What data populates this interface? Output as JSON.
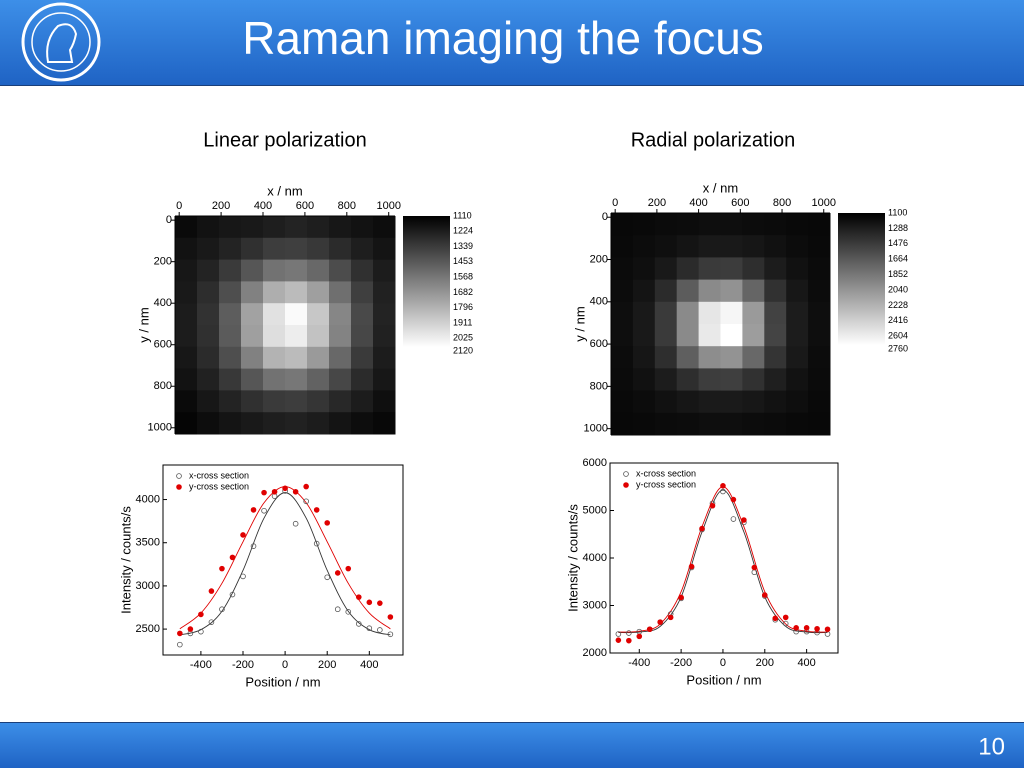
{
  "header": {
    "title": "Raman imaging the focus"
  },
  "slide_number": 10,
  "panels": [
    {
      "label": "Linear polarization",
      "heatmap": {
        "type": "heatmap",
        "xlabel": "x / nm",
        "ylabel": "y / nm",
        "xlim": [
          -20,
          1030
        ],
        "ylim": [
          -20,
          1030
        ],
        "xticks": [
          0,
          200,
          400,
          600,
          800,
          1000
        ],
        "yticks": [
          0,
          200,
          400,
          600,
          800,
          1000
        ],
        "values": [
          [
            1150,
            1180,
            1200,
            1210,
            1230,
            1250,
            1230,
            1200,
            1180,
            1160
          ],
          [
            1180,
            1210,
            1250,
            1300,
            1350,
            1360,
            1330,
            1280,
            1230,
            1190
          ],
          [
            1200,
            1250,
            1340,
            1450,
            1560,
            1580,
            1520,
            1410,
            1300,
            1220
          ],
          [
            1210,
            1290,
            1420,
            1620,
            1800,
            1850,
            1740,
            1550,
            1360,
            1240
          ],
          [
            1220,
            1310,
            1480,
            1750,
            2000,
            2100,
            1900,
            1640,
            1400,
            1250
          ],
          [
            1220,
            1300,
            1470,
            1740,
            1990,
            2050,
            1880,
            1630,
            1390,
            1240
          ],
          [
            1200,
            1280,
            1420,
            1620,
            1820,
            1850,
            1720,
            1520,
            1340,
            1220
          ],
          [
            1180,
            1240,
            1330,
            1450,
            1560,
            1580,
            1500,
            1390,
            1280,
            1200
          ],
          [
            1150,
            1200,
            1250,
            1300,
            1340,
            1350,
            1320,
            1270,
            1220,
            1170
          ],
          [
            1130,
            1160,
            1190,
            1210,
            1230,
            1240,
            1220,
            1190,
            1160,
            1140
          ]
        ],
        "colorbar_ticks": [
          1110,
          1224,
          1339,
          1453,
          1568,
          1682,
          1796,
          1911,
          2025,
          2120
        ]
      },
      "profile": {
        "type": "scatter",
        "xlabel": "Position / nm",
        "ylabel": "Intensity / counts/s",
        "xlim": [
          -580,
          560
        ],
        "ylim": [
          2200,
          4400
        ],
        "xticks": [
          -400,
          -200,
          0,
          200,
          400
        ],
        "yticks": [
          2500,
          3000,
          3500,
          4000
        ],
        "x": [
          -500,
          -450,
          -400,
          -350,
          -300,
          -250,
          -200,
          -150,
          -100,
          -50,
          0,
          50,
          100,
          150,
          200,
          250,
          300,
          350,
          400,
          450,
          500
        ],
        "series": [
          {
            "name": "x-cross section",
            "color": "#555555",
            "marker": "open",
            "values": [
              2320,
              2450,
              2470,
              2580,
              2730,
              2900,
              3110,
              3460,
              3870,
              4040,
              4100,
              3720,
              3980,
              3490,
              3100,
              2730,
              2700,
              2560,
              2510,
              2490,
              2440
            ]
          },
          {
            "name": "y-cross section",
            "color": "#e00000",
            "marker": "filled",
            "values": [
              2450,
              2500,
              2670,
              2940,
              3200,
              3330,
              3590,
              3880,
              4080,
              4090,
              4130,
              4090,
              4150,
              3880,
              3730,
              3150,
              3200,
              2870,
              2810,
              2800,
              2640
            ]
          }
        ],
        "fits": [
          {
            "color": "#333333",
            "x": [
              -500,
              -400,
              -300,
              -200,
              -100,
              0,
              100,
              200,
              300,
              400,
              500
            ],
            "values": [
              2433,
              2493,
              2706,
              3180,
              3786,
              4080,
              3786,
              3180,
              2706,
              2493,
              2433
            ]
          },
          {
            "color": "#e00000",
            "x": [
              -500,
              -400,
              -300,
              -200,
              -100,
              0,
              100,
              200,
              300,
              400,
              500
            ],
            "values": [
              2503,
              2685,
              3030,
              3511,
              3963,
              4150,
              3963,
              3511,
              3030,
              2685,
              2503
            ]
          }
        ]
      }
    },
    {
      "label": "Radial polarization",
      "heatmap": {
        "type": "heatmap",
        "xlabel": "x / nm",
        "ylabel": "y / nm",
        "xlim": [
          -20,
          1030
        ],
        "ylim": [
          -20,
          1030
        ],
        "xticks": [
          0,
          200,
          400,
          600,
          800,
          1000
        ],
        "yticks": [
          0,
          200,
          400,
          600,
          800,
          1000
        ],
        "values": [
          [
            1150,
            1160,
            1170,
            1180,
            1190,
            1190,
            1180,
            1170,
            1160,
            1150
          ],
          [
            1160,
            1180,
            1200,
            1230,
            1260,
            1260,
            1240,
            1210,
            1180,
            1160
          ],
          [
            1170,
            1200,
            1260,
            1380,
            1480,
            1490,
            1400,
            1280,
            1210,
            1170
          ],
          [
            1180,
            1230,
            1380,
            1700,
            2000,
            2050,
            1760,
            1420,
            1250,
            1180
          ],
          [
            1190,
            1260,
            1480,
            2000,
            2600,
            2700,
            2100,
            1530,
            1280,
            1190
          ],
          [
            1190,
            1260,
            1480,
            2000,
            2620,
            2760,
            2120,
            1540,
            1280,
            1190
          ],
          [
            1180,
            1240,
            1400,
            1720,
            2020,
            2060,
            1780,
            1440,
            1260,
            1180
          ],
          [
            1170,
            1210,
            1280,
            1400,
            1500,
            1510,
            1420,
            1300,
            1220,
            1170
          ],
          [
            1160,
            1180,
            1210,
            1240,
            1270,
            1270,
            1250,
            1220,
            1190,
            1160
          ],
          [
            1150,
            1160,
            1170,
            1180,
            1190,
            1190,
            1180,
            1170,
            1160,
            1150
          ]
        ],
        "colorbar_ticks": [
          1100,
          1288,
          1476,
          1664,
          1852,
          2040,
          2228,
          2416,
          2604,
          2760
        ]
      },
      "profile": {
        "type": "scatter",
        "xlabel": "Position / nm",
        "ylabel": "Intensity / counts/s",
        "xlim": [
          -540,
          550
        ],
        "ylim": [
          2000,
          6000
        ],
        "xticks": [
          -400,
          -200,
          0,
          200,
          400
        ],
        "yticks": [
          2000,
          3000,
          4000,
          5000,
          6000
        ],
        "x": [
          -500,
          -450,
          -400,
          -350,
          -300,
          -250,
          -200,
          -150,
          -100,
          -50,
          0,
          50,
          100,
          150,
          200,
          250,
          300,
          350,
          400,
          450,
          500
        ],
        "series": [
          {
            "name": "x-cross section",
            "color": "#555555",
            "marker": "open",
            "values": [
              2400,
              2420,
              2450,
              2500,
              2650,
              2820,
              3150,
              3800,
              4600,
              5150,
              5400,
              4820,
              4750,
              3700,
              3200,
              2700,
              2620,
              2450,
              2450,
              2430,
              2400
            ]
          },
          {
            "name": "y-cross section",
            "color": "#e00000",
            "marker": "filled",
            "values": [
              2270,
              2260,
              2350,
              2500,
              2650,
              2750,
              3170,
              3820,
              4620,
              5100,
              5520,
              5230,
              4800,
              3800,
              3220,
              2730,
              2750,
              2530,
              2530,
              2510,
              2500
            ]
          }
        ],
        "fits": [
          {
            "color": "#333333",
            "x": [
              -500,
              -400,
              -300,
              -200,
              -100,
              0,
              100,
              200,
              300,
              400,
              500
            ],
            "values": [
              2430,
              2442,
              2560,
              3180,
              4550,
              5430,
              4550,
              3180,
              2560,
              2442,
              2430
            ]
          },
          {
            "color": "#e00000",
            "x": [
              -500,
              -400,
              -300,
              -200,
              -100,
              0,
              100,
              200,
              300,
              400,
              500
            ],
            "values": [
              2441,
              2458,
              2610,
              3290,
              4660,
              5500,
              4660,
              3290,
              2610,
              2458,
              2441
            ]
          }
        ]
      }
    }
  ]
}
